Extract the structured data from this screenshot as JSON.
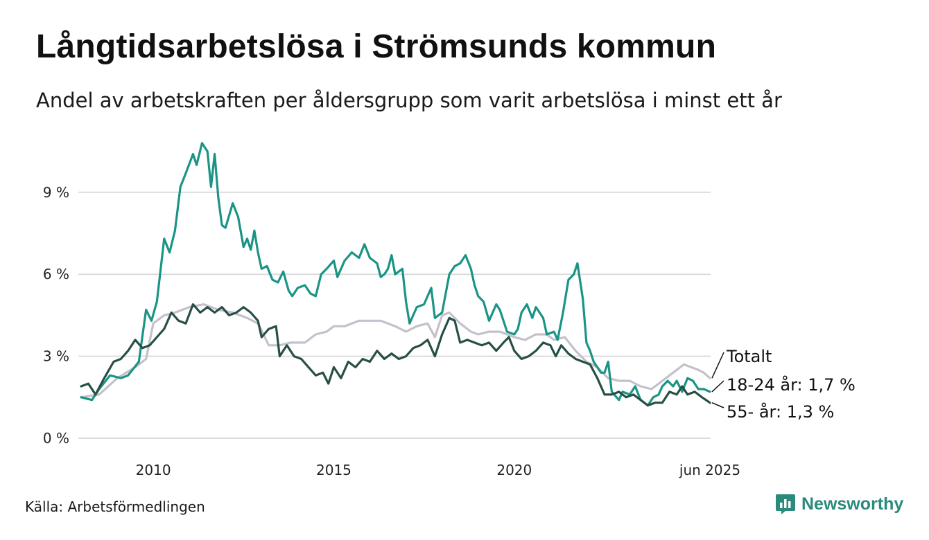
{
  "title": "Långtidsarbetslösa i Strömsunds kommun",
  "subtitle": "Andel av arbetskraften per åldersgrupp som varit arbetslösa i minst ett år",
  "source": "Källa: Arbetsförmedlingen",
  "brand": {
    "name": "Newsworthy",
    "icon": "bar-chart-speech-bubble-icon",
    "color": "#2a8a7c"
  },
  "chart_data": {
    "type": "line",
    "title": "Långtidsarbetslösa i Strömsunds kommun",
    "subtitle": "Andel av arbetskraften per åldersgrupp som varit arbetslösa i minst ett år",
    "x_ticks": [
      {
        "x": 2010,
        "label": "2010"
      },
      {
        "x": 2015,
        "label": "2015"
      },
      {
        "x": 2020,
        "label": "2020"
      },
      {
        "x": 2025.42,
        "label": "jun 2025"
      }
    ],
    "y_ticks": [
      {
        "y": 0,
        "label": "0 %"
      },
      {
        "y": 3,
        "label": "3 %"
      },
      {
        "y": 6,
        "label": "6 %"
      },
      {
        "y": 9,
        "label": "9 %"
      }
    ],
    "xlim": [
      2008.0,
      2025.42
    ],
    "ylim": [
      0,
      10.8
    ],
    "grid": true,
    "legend": "end labels (right)",
    "series": [
      {
        "name": "Totalt",
        "label": "Totalt",
        "color": "#c4c0cc",
        "points": [
          [
            2008.0,
            1.5
          ],
          [
            2008.5,
            1.6
          ],
          [
            2009.0,
            2.2
          ],
          [
            2009.5,
            2.6
          ],
          [
            2009.8,
            2.9
          ],
          [
            2010.0,
            4.2
          ],
          [
            2010.3,
            4.5
          ],
          [
            2010.6,
            4.6
          ],
          [
            2011.0,
            4.8
          ],
          [
            2011.4,
            4.9
          ],
          [
            2011.8,
            4.7
          ],
          [
            2012.2,
            4.6
          ],
          [
            2012.6,
            4.4
          ],
          [
            2012.9,
            4.2
          ],
          [
            2013.2,
            3.4
          ],
          [
            2013.5,
            3.4
          ],
          [
            2013.8,
            3.5
          ],
          [
            2014.2,
            3.5
          ],
          [
            2014.5,
            3.8
          ],
          [
            2014.8,
            3.9
          ],
          [
            2015.0,
            4.1
          ],
          [
            2015.3,
            4.1
          ],
          [
            2015.7,
            4.3
          ],
          [
            2016.0,
            4.3
          ],
          [
            2016.3,
            4.3
          ],
          [
            2016.7,
            4.1
          ],
          [
            2017.0,
            3.9
          ],
          [
            2017.3,
            4.1
          ],
          [
            2017.6,
            4.2
          ],
          [
            2017.8,
            3.7
          ],
          [
            2018.0,
            4.5
          ],
          [
            2018.2,
            4.6
          ],
          [
            2018.5,
            4.2
          ],
          [
            2018.8,
            3.9
          ],
          [
            2019.0,
            3.8
          ],
          [
            2019.3,
            3.9
          ],
          [
            2019.6,
            3.9
          ],
          [
            2019.8,
            3.8
          ],
          [
            2020.0,
            3.7
          ],
          [
            2020.3,
            3.6
          ],
          [
            2020.6,
            3.8
          ],
          [
            2020.9,
            3.8
          ],
          [
            2021.1,
            3.6
          ],
          [
            2021.4,
            3.7
          ],
          [
            2021.7,
            3.2
          ],
          [
            2022.0,
            2.8
          ],
          [
            2022.3,
            2.6
          ],
          [
            2022.6,
            2.2
          ],
          [
            2022.9,
            2.1
          ],
          [
            2023.2,
            2.1
          ],
          [
            2023.5,
            1.9
          ],
          [
            2023.8,
            1.8
          ],
          [
            2024.1,
            2.1
          ],
          [
            2024.4,
            2.4
          ],
          [
            2024.7,
            2.7
          ],
          [
            2024.9,
            2.6
          ],
          [
            2025.1,
            2.5
          ],
          [
            2025.25,
            2.4
          ],
          [
            2025.42,
            2.2
          ]
        ]
      },
      {
        "name": "18-24 år",
        "label": "18-24 år: 1,7 %",
        "color": "#1a9485",
        "points": [
          [
            2008.0,
            1.5
          ],
          [
            2008.3,
            1.4
          ],
          [
            2008.5,
            1.8
          ],
          [
            2008.8,
            2.3
          ],
          [
            2009.1,
            2.2
          ],
          [
            2009.3,
            2.3
          ],
          [
            2009.6,
            2.8
          ],
          [
            2009.8,
            4.7
          ],
          [
            2009.95,
            4.3
          ],
          [
            2010.1,
            5.0
          ],
          [
            2010.3,
            7.3
          ],
          [
            2010.45,
            6.8
          ],
          [
            2010.6,
            7.6
          ],
          [
            2010.75,
            9.2
          ],
          [
            2010.9,
            9.7
          ],
          [
            2011.1,
            10.4
          ],
          [
            2011.2,
            10.0
          ],
          [
            2011.35,
            10.8
          ],
          [
            2011.5,
            10.5
          ],
          [
            2011.6,
            9.2
          ],
          [
            2011.7,
            10.4
          ],
          [
            2011.8,
            8.8
          ],
          [
            2011.9,
            7.8
          ],
          [
            2012.0,
            7.7
          ],
          [
            2012.2,
            8.6
          ],
          [
            2012.35,
            8.1
          ],
          [
            2012.5,
            7.0
          ],
          [
            2012.6,
            7.3
          ],
          [
            2012.7,
            6.9
          ],
          [
            2012.8,
            7.6
          ],
          [
            2012.9,
            6.8
          ],
          [
            2013.0,
            6.2
          ],
          [
            2013.15,
            6.3
          ],
          [
            2013.3,
            5.8
          ],
          [
            2013.45,
            5.7
          ],
          [
            2013.6,
            6.1
          ],
          [
            2013.75,
            5.4
          ],
          [
            2013.85,
            5.2
          ],
          [
            2014.0,
            5.5
          ],
          [
            2014.2,
            5.6
          ],
          [
            2014.35,
            5.3
          ],
          [
            2014.5,
            5.2
          ],
          [
            2014.65,
            6.0
          ],
          [
            2014.8,
            6.2
          ],
          [
            2015.0,
            6.5
          ],
          [
            2015.1,
            5.9
          ],
          [
            2015.3,
            6.5
          ],
          [
            2015.5,
            6.8
          ],
          [
            2015.7,
            6.6
          ],
          [
            2015.85,
            7.1
          ],
          [
            2016.0,
            6.6
          ],
          [
            2016.2,
            6.4
          ],
          [
            2016.3,
            5.9
          ],
          [
            2016.4,
            6.0
          ],
          [
            2016.5,
            6.2
          ],
          [
            2016.6,
            6.7
          ],
          [
            2016.7,
            6.0
          ],
          [
            2016.9,
            6.2
          ],
          [
            2017.0,
            5.0
          ],
          [
            2017.1,
            4.2
          ],
          [
            2017.3,
            4.8
          ],
          [
            2017.5,
            4.9
          ],
          [
            2017.7,
            5.5
          ],
          [
            2017.8,
            4.4
          ],
          [
            2018.0,
            4.6
          ],
          [
            2018.2,
            6.0
          ],
          [
            2018.35,
            6.3
          ],
          [
            2018.5,
            6.4
          ],
          [
            2018.65,
            6.7
          ],
          [
            2018.8,
            6.2
          ],
          [
            2018.9,
            5.6
          ],
          [
            2019.0,
            5.2
          ],
          [
            2019.15,
            5.0
          ],
          [
            2019.3,
            4.3
          ],
          [
            2019.5,
            4.9
          ],
          [
            2019.6,
            4.7
          ],
          [
            2019.8,
            3.9
          ],
          [
            2020.0,
            3.8
          ],
          [
            2020.1,
            4.0
          ],
          [
            2020.2,
            4.6
          ],
          [
            2020.35,
            4.9
          ],
          [
            2020.5,
            4.4
          ],
          [
            2020.6,
            4.8
          ],
          [
            2020.8,
            4.4
          ],
          [
            2020.9,
            3.8
          ],
          [
            2021.1,
            3.9
          ],
          [
            2021.2,
            3.6
          ],
          [
            2021.35,
            4.6
          ],
          [
            2021.5,
            5.8
          ],
          [
            2021.65,
            6.0
          ],
          [
            2021.75,
            6.4
          ],
          [
            2021.9,
            5.1
          ],
          [
            2022.0,
            3.5
          ],
          [
            2022.1,
            3.2
          ],
          [
            2022.2,
            2.8
          ],
          [
            2022.4,
            2.4
          ],
          [
            2022.5,
            2.4
          ],
          [
            2022.6,
            2.8
          ],
          [
            2022.7,
            1.7
          ],
          [
            2022.9,
            1.4
          ],
          [
            2023.0,
            1.7
          ],
          [
            2023.2,
            1.6
          ],
          [
            2023.35,
            1.9
          ],
          [
            2023.5,
            1.4
          ],
          [
            2023.7,
            1.2
          ],
          [
            2023.85,
            1.5
          ],
          [
            2024.0,
            1.6
          ],
          [
            2024.1,
            1.9
          ],
          [
            2024.25,
            2.1
          ],
          [
            2024.4,
            1.9
          ],
          [
            2024.5,
            2.1
          ],
          [
            2024.65,
            1.7
          ],
          [
            2024.8,
            2.2
          ],
          [
            2024.95,
            2.1
          ],
          [
            2025.1,
            1.8
          ],
          [
            2025.25,
            1.8
          ],
          [
            2025.42,
            1.7
          ]
        ]
      },
      {
        "name": "55- år",
        "label": "55- år: 1,3 %",
        "color": "#274f45",
        "points": [
          [
            2008.0,
            1.9
          ],
          [
            2008.2,
            2.0
          ],
          [
            2008.4,
            1.6
          ],
          [
            2008.6,
            2.1
          ],
          [
            2008.9,
            2.8
          ],
          [
            2009.1,
            2.9
          ],
          [
            2009.3,
            3.2
          ],
          [
            2009.5,
            3.6
          ],
          [
            2009.7,
            3.3
          ],
          [
            2009.9,
            3.4
          ],
          [
            2010.1,
            3.7
          ],
          [
            2010.3,
            4.0
          ],
          [
            2010.5,
            4.6
          ],
          [
            2010.7,
            4.3
          ],
          [
            2010.9,
            4.2
          ],
          [
            2011.1,
            4.9
          ],
          [
            2011.3,
            4.6
          ],
          [
            2011.5,
            4.8
          ],
          [
            2011.7,
            4.6
          ],
          [
            2011.9,
            4.8
          ],
          [
            2012.1,
            4.5
          ],
          [
            2012.3,
            4.6
          ],
          [
            2012.5,
            4.8
          ],
          [
            2012.7,
            4.6
          ],
          [
            2012.9,
            4.3
          ],
          [
            2013.0,
            3.7
          ],
          [
            2013.2,
            4.0
          ],
          [
            2013.4,
            4.1
          ],
          [
            2013.5,
            3.0
          ],
          [
            2013.7,
            3.4
          ],
          [
            2013.9,
            3.0
          ],
          [
            2014.1,
            2.9
          ],
          [
            2014.3,
            2.6
          ],
          [
            2014.5,
            2.3
          ],
          [
            2014.7,
            2.4
          ],
          [
            2014.85,
            2.0
          ],
          [
            2015.0,
            2.6
          ],
          [
            2015.2,
            2.2
          ],
          [
            2015.4,
            2.8
          ],
          [
            2015.6,
            2.6
          ],
          [
            2015.8,
            2.9
          ],
          [
            2016.0,
            2.8
          ],
          [
            2016.2,
            3.2
          ],
          [
            2016.4,
            2.9
          ],
          [
            2016.6,
            3.1
          ],
          [
            2016.8,
            2.9
          ],
          [
            2017.0,
            3.0
          ],
          [
            2017.2,
            3.3
          ],
          [
            2017.4,
            3.4
          ],
          [
            2017.6,
            3.6
          ],
          [
            2017.8,
            3.0
          ],
          [
            2018.0,
            3.8
          ],
          [
            2018.2,
            4.4
          ],
          [
            2018.35,
            4.3
          ],
          [
            2018.5,
            3.5
          ],
          [
            2018.7,
            3.6
          ],
          [
            2018.9,
            3.5
          ],
          [
            2019.1,
            3.4
          ],
          [
            2019.3,
            3.5
          ],
          [
            2019.5,
            3.2
          ],
          [
            2019.7,
            3.5
          ],
          [
            2019.85,
            3.7
          ],
          [
            2020.0,
            3.2
          ],
          [
            2020.2,
            2.9
          ],
          [
            2020.4,
            3.0
          ],
          [
            2020.6,
            3.2
          ],
          [
            2020.8,
            3.5
          ],
          [
            2021.0,
            3.4
          ],
          [
            2021.15,
            3.0
          ],
          [
            2021.3,
            3.4
          ],
          [
            2021.5,
            3.1
          ],
          [
            2021.7,
            2.9
          ],
          [
            2021.9,
            2.8
          ],
          [
            2022.1,
            2.7
          ],
          [
            2022.3,
            2.2
          ],
          [
            2022.5,
            1.6
          ],
          [
            2022.7,
            1.6
          ],
          [
            2022.9,
            1.7
          ],
          [
            2023.1,
            1.5
          ],
          [
            2023.3,
            1.6
          ],
          [
            2023.5,
            1.4
          ],
          [
            2023.7,
            1.2
          ],
          [
            2023.9,
            1.3
          ],
          [
            2024.1,
            1.3
          ],
          [
            2024.3,
            1.7
          ],
          [
            2024.5,
            1.6
          ],
          [
            2024.65,
            1.9
          ],
          [
            2024.8,
            1.6
          ],
          [
            2025.0,
            1.7
          ],
          [
            2025.2,
            1.5
          ],
          [
            2025.42,
            1.3
          ]
        ]
      }
    ]
  }
}
